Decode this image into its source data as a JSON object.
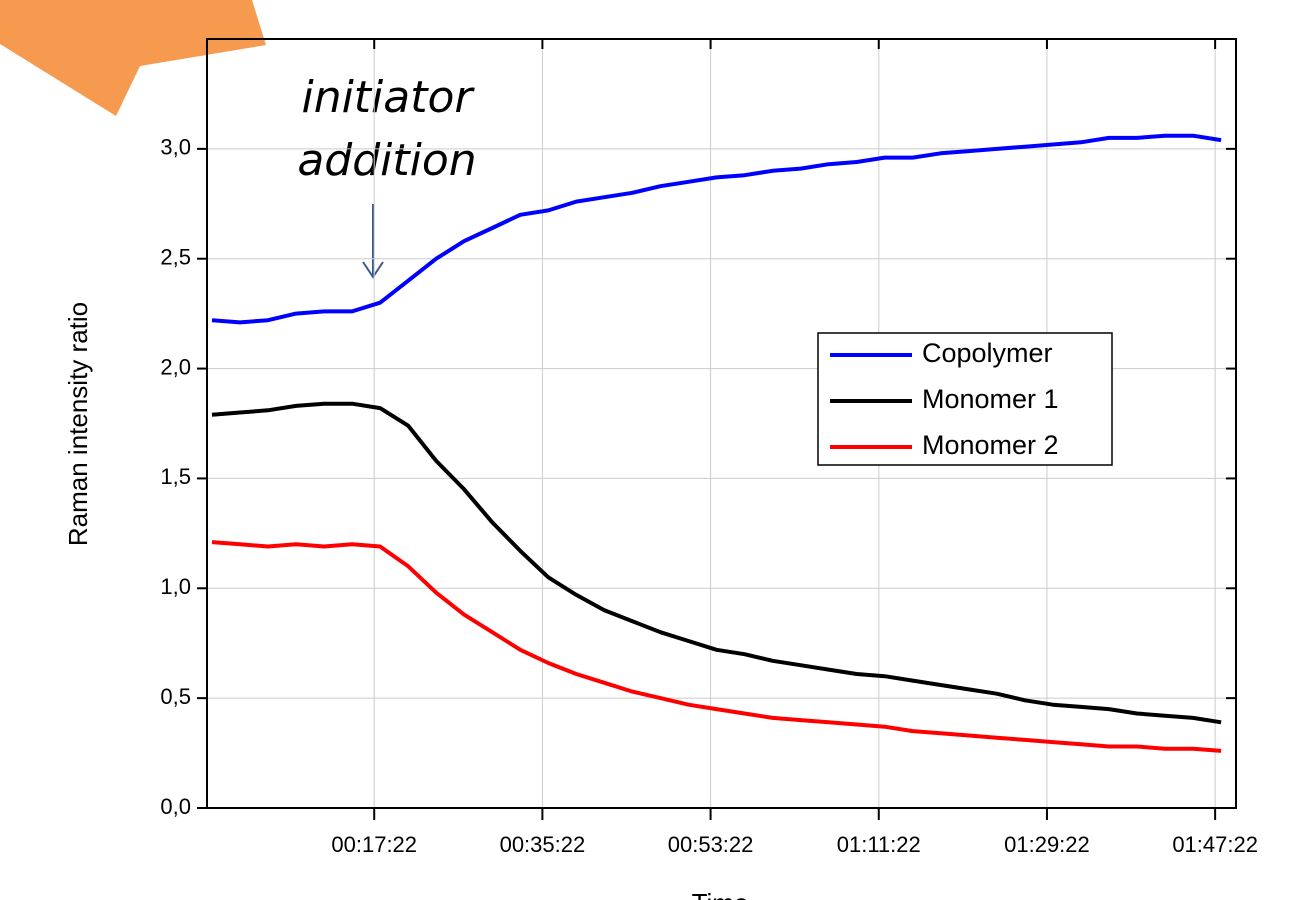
{
  "chart_data": {
    "type": "line",
    "xlabel": "Time",
    "ylabel": "Raman intensity ratio",
    "annotation_lines": [
      "initiator",
      "addition"
    ],
    "grid": true,
    "legend_position": "right",
    "xlim": [
      -0.53,
      109.6
    ],
    "ylim": [
      0,
      3.5
    ],
    "xticks": [
      {
        "value": 17.3667,
        "label": "00:17:22"
      },
      {
        "value": 35.3667,
        "label": "00:35:22"
      },
      {
        "value": 53.3667,
        "label": "00:53:22"
      },
      {
        "value": 71.3667,
        "label": "01:11:22"
      },
      {
        "value": 89.3667,
        "label": "01:29:22"
      },
      {
        "value": 107.3667,
        "label": "01:47:22"
      }
    ],
    "yticks": [
      {
        "value": 0,
        "label": "0,0"
      },
      {
        "value": 0.5,
        "label": "0,5"
      },
      {
        "value": 1,
        "label": "1,0"
      },
      {
        "value": 1.5,
        "label": "1,5"
      },
      {
        "value": 2,
        "label": "2,0"
      },
      {
        "value": 2.5,
        "label": "2,5"
      },
      {
        "value": 3,
        "label": "3,0"
      }
    ],
    "x": [
      0,
      3,
      6,
      9,
      12,
      15,
      18,
      21,
      24,
      27,
      30,
      33,
      36,
      39,
      42,
      45,
      48,
      51,
      54,
      57,
      60,
      63,
      66,
      69,
      72,
      75,
      78,
      81,
      84,
      87,
      90,
      93,
      96,
      99,
      102,
      105,
      108
    ],
    "series": [
      {
        "name": "Copolymer",
        "color": "#0000ff",
        "values": [
          2.22,
          2.21,
          2.22,
          2.25,
          2.26,
          2.26,
          2.3,
          2.4,
          2.5,
          2.58,
          2.64,
          2.7,
          2.72,
          2.76,
          2.78,
          2.8,
          2.83,
          2.85,
          2.87,
          2.88,
          2.9,
          2.91,
          2.93,
          2.94,
          2.96,
          2.96,
          2.98,
          2.99,
          3.0,
          3.01,
          3.02,
          3.03,
          3.05,
          3.05,
          3.06,
          3.06,
          3.04
        ]
      },
      {
        "name": "Monomer 1",
        "color": "#000000",
        "values": [
          1.79,
          1.8,
          1.81,
          1.83,
          1.84,
          1.84,
          1.82,
          1.74,
          1.58,
          1.45,
          1.3,
          1.17,
          1.05,
          0.97,
          0.9,
          0.85,
          0.8,
          0.76,
          0.72,
          0.7,
          0.67,
          0.65,
          0.63,
          0.61,
          0.6,
          0.58,
          0.56,
          0.54,
          0.52,
          0.49,
          0.47,
          0.46,
          0.45,
          0.43,
          0.42,
          0.41,
          0.39
        ]
      },
      {
        "name": "Monomer 2",
        "color": "#ff0000",
        "values": [
          1.21,
          1.2,
          1.19,
          1.2,
          1.19,
          1.2,
          1.19,
          1.1,
          0.98,
          0.88,
          0.8,
          0.72,
          0.66,
          0.61,
          0.57,
          0.53,
          0.5,
          0.47,
          0.45,
          0.43,
          0.41,
          0.4,
          0.39,
          0.38,
          0.37,
          0.35,
          0.34,
          0.33,
          0.32,
          0.31,
          0.3,
          0.29,
          0.28,
          0.28,
          0.27,
          0.27,
          0.26
        ]
      }
    ]
  }
}
